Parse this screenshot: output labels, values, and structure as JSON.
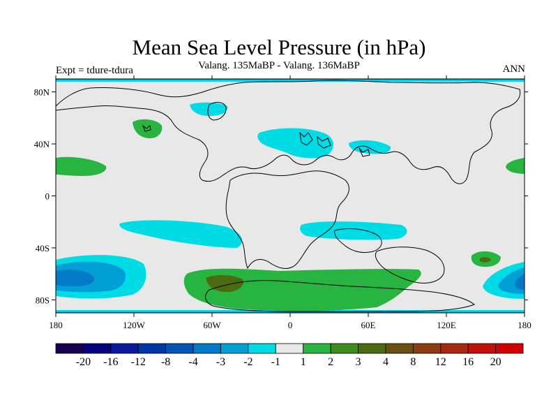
{
  "title": "Mean Sea Level Pressure (in hPa)",
  "subtitle": "Valang.  135MaBP - Valang.  136MaBP",
  "left_label": "Expt = tdure-tdura",
  "right_label": "ANN",
  "lon_ticks": [
    "180",
    "120W",
    "60W",
    "0",
    "60E",
    "120E",
    "180"
  ],
  "lat_ticks": [
    "80N",
    "40N",
    "0",
    "40S",
    "80S"
  ],
  "colorbar": {
    "colors": [
      "#1a0050",
      "#04007e",
      "#0a1a9c",
      "#0037a6",
      "#0056b8",
      "#0079c8",
      "#009fd6",
      "#00dce6",
      "#e8e8e8",
      "#28b440",
      "#3c8c1c",
      "#4c6b10",
      "#6b5010",
      "#8c3c10",
      "#a82810",
      "#c01008",
      "#d20000"
    ],
    "labels": [
      "-20",
      "-16",
      "-12",
      "-8",
      "-4",
      "-3",
      "-2",
      "-1",
      "1",
      "2",
      "3",
      "4",
      "8",
      "12",
      "16",
      "20"
    ]
  },
  "colors": {
    "land_ocean_bg": "#e8e8e8",
    "light_blue": "#00dce6",
    "mid_blue": "#009fd6",
    "deep_blue": "#0079c8",
    "green": "#28b440",
    "dark_green": "#3c8c1c",
    "olive": "#4c6b10"
  }
}
